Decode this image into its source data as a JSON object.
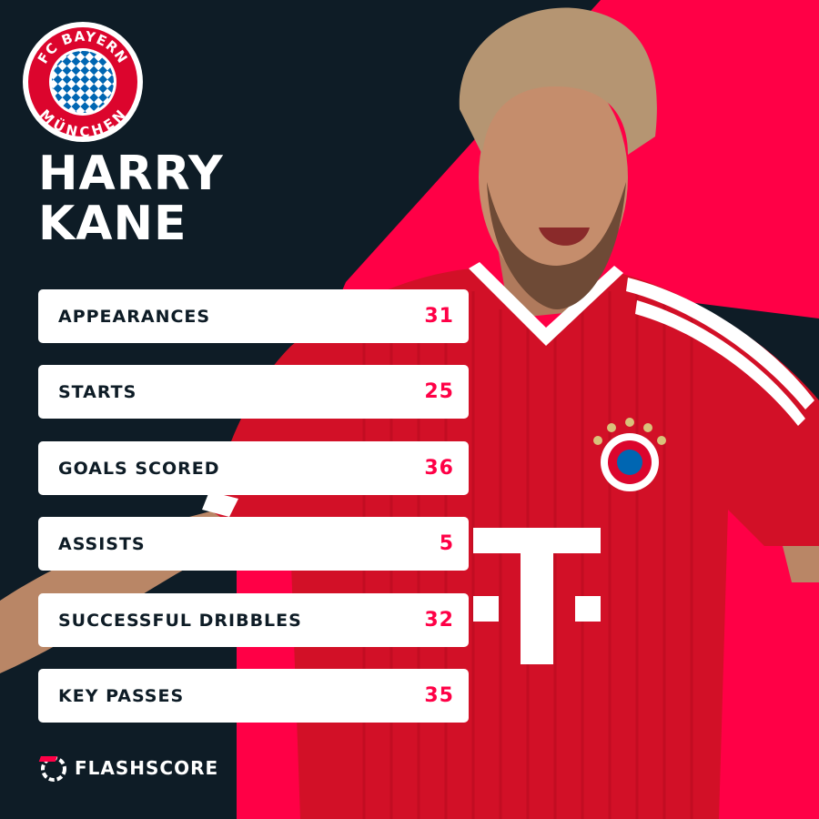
{
  "player": {
    "first_name": "HARRY",
    "last_name": "KANE"
  },
  "club": {
    "crest_text_top": "FC BAYERN",
    "crest_text_bottom": "MÜNCHEN"
  },
  "shirt": {
    "sponsor_letter": "T"
  },
  "stats": [
    {
      "label": "APPEARANCES",
      "value": "31"
    },
    {
      "label": "STARTS",
      "value": "25"
    },
    {
      "label": "GOALS SCORED",
      "value": "36"
    },
    {
      "label": "ASSISTS",
      "value": "5"
    },
    {
      "label": "SUCCESSFUL DRIBBLES",
      "value": "32"
    },
    {
      "label": "KEY PASSES",
      "value": "35"
    }
  ],
  "brand": {
    "name": "FLASHSCORE"
  },
  "colors": {
    "background": "#0e1c26",
    "accent": "#ff0046",
    "shirt_red": "#d21027",
    "card": "#ffffff"
  }
}
